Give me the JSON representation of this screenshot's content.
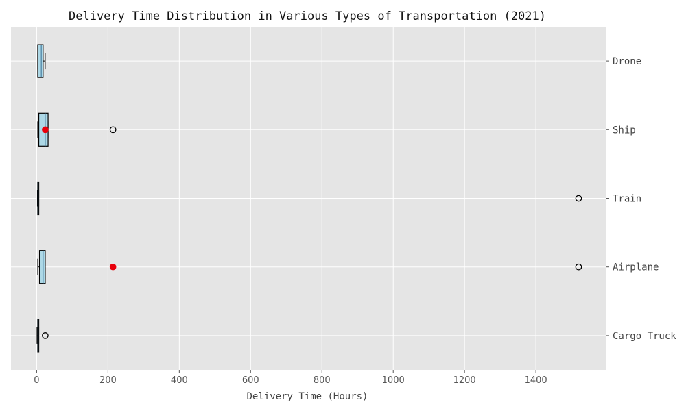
{
  "chart_data": {
    "type": "boxplot",
    "orientation": "horizontal",
    "title": "Delivery Time Distribution in Various Types of Transportation (2021)",
    "xlabel": "Delivery Time (Hours)",
    "ylabel": "",
    "xlim": [
      -72,
      1596
    ],
    "xticks": [
      0,
      200,
      400,
      600,
      800,
      1000,
      1200,
      1400
    ],
    "ytick_position": "right",
    "grid": true,
    "colors": {
      "background": "#e5e5e5",
      "grid": "#ffffff",
      "box_fill": "#add8e6",
      "box_edge": "#000000",
      "highlight": "#e8000b"
    },
    "categories": [
      "Drone",
      "Ship",
      "Train",
      "Airplane",
      "Cargo Truck"
    ],
    "boxes": [
      {
        "name": "Drone",
        "min": 3,
        "q1": 3,
        "median": 13,
        "q3": 18,
        "max": 24,
        "outliers": [],
        "highlight": null
      },
      {
        "name": "Ship",
        "min": 3,
        "q1": 6,
        "median": 24,
        "q3": 32,
        "max": 32,
        "outliers": [
          214
        ],
        "highlight": 24
      },
      {
        "name": "Train",
        "min": 2,
        "q1": 3,
        "median": 4,
        "q3": 6,
        "max": 6,
        "outliers": [
          1520
        ],
        "highlight": null
      },
      {
        "name": "Airplane",
        "min": 3,
        "q1": 8,
        "median": 18,
        "q3": 24,
        "max": 24,
        "outliers": [
          1520
        ],
        "highlight": 214
      },
      {
        "name": "Cargo Truck",
        "min": 1,
        "q1": 3,
        "median": 4,
        "q3": 6,
        "max": 6,
        "outliers": [
          24
        ],
        "highlight": null
      }
    ]
  }
}
